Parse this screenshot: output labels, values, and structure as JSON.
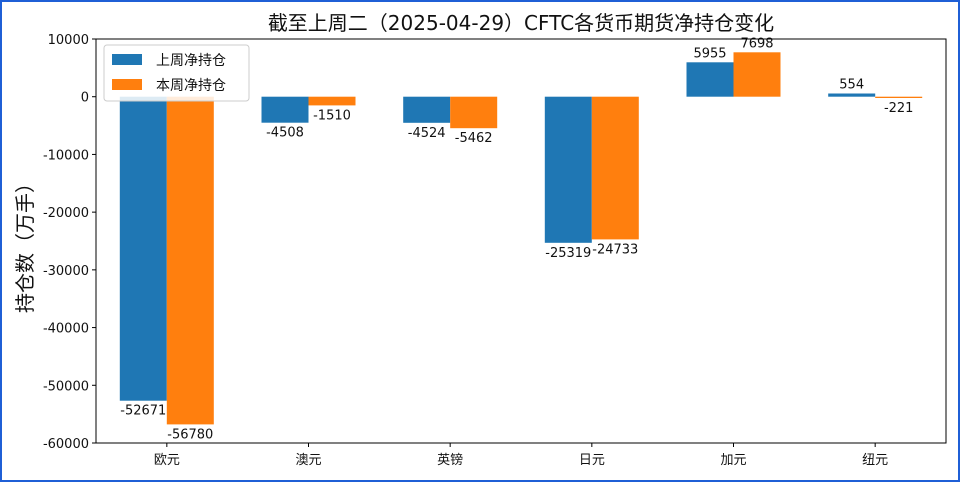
{
  "chart_data": {
    "type": "bar",
    "title": "截至上周二（2025-04-29）CFTC各货币期货净持仓变化",
    "xlabel": "",
    "ylabel": "持仓数（万手）",
    "categories": [
      "欧元",
      "澳元",
      "英镑",
      "日元",
      "加元",
      "纽元"
    ],
    "series": [
      {
        "name": "上周净持仓",
        "color": "#1f77b4",
        "values": [
          -52671,
          -4508,
          -4524,
          -25319,
          5955,
          554
        ]
      },
      {
        "name": "本周净持仓",
        "color": "#ff7f0e",
        "values": [
          -56780,
          -1510,
          -5462,
          -24733,
          7698,
          -221
        ]
      }
    ],
    "ylim": [
      -60000,
      10000
    ],
    "yticks": [
      10000,
      0,
      -10000,
      -20000,
      -30000,
      -40000,
      -50000,
      -60000
    ],
    "legend": "top-left",
    "grid": false
  }
}
